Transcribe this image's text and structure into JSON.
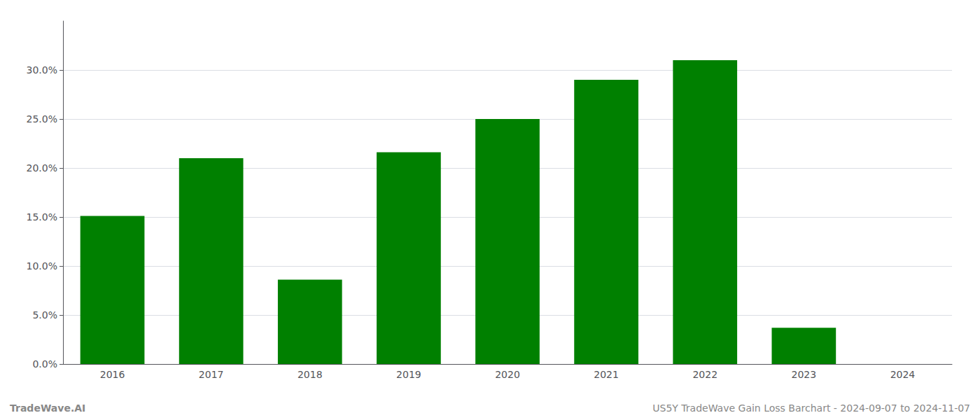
{
  "chart_data": {
    "type": "bar",
    "categories": [
      "2016",
      "2017",
      "2018",
      "2019",
      "2020",
      "2021",
      "2022",
      "2023",
      "2024"
    ],
    "values": [
      0.151,
      0.21,
      0.086,
      0.216,
      0.25,
      0.29,
      0.31,
      0.037,
      0.0
    ],
    "color": "#008000",
    "ylim": [
      0,
      0.35
    ],
    "yticks": [
      {
        "value": 0.0,
        "label": "0.0%"
      },
      {
        "value": 0.05,
        "label": "5.0%"
      },
      {
        "value": 0.1,
        "label": "10.0%"
      },
      {
        "value": 0.15,
        "label": "15.0%"
      },
      {
        "value": 0.2,
        "label": "20.0%"
      },
      {
        "value": 0.25,
        "label": "25.0%"
      },
      {
        "value": 0.3,
        "label": "30.0%"
      }
    ],
    "grid": true,
    "annotations": [
      "TradeWave.AI",
      "US5Y TradeWave Gain Loss Barchart - 2024-09-07 to 2024-11-07"
    ]
  }
}
